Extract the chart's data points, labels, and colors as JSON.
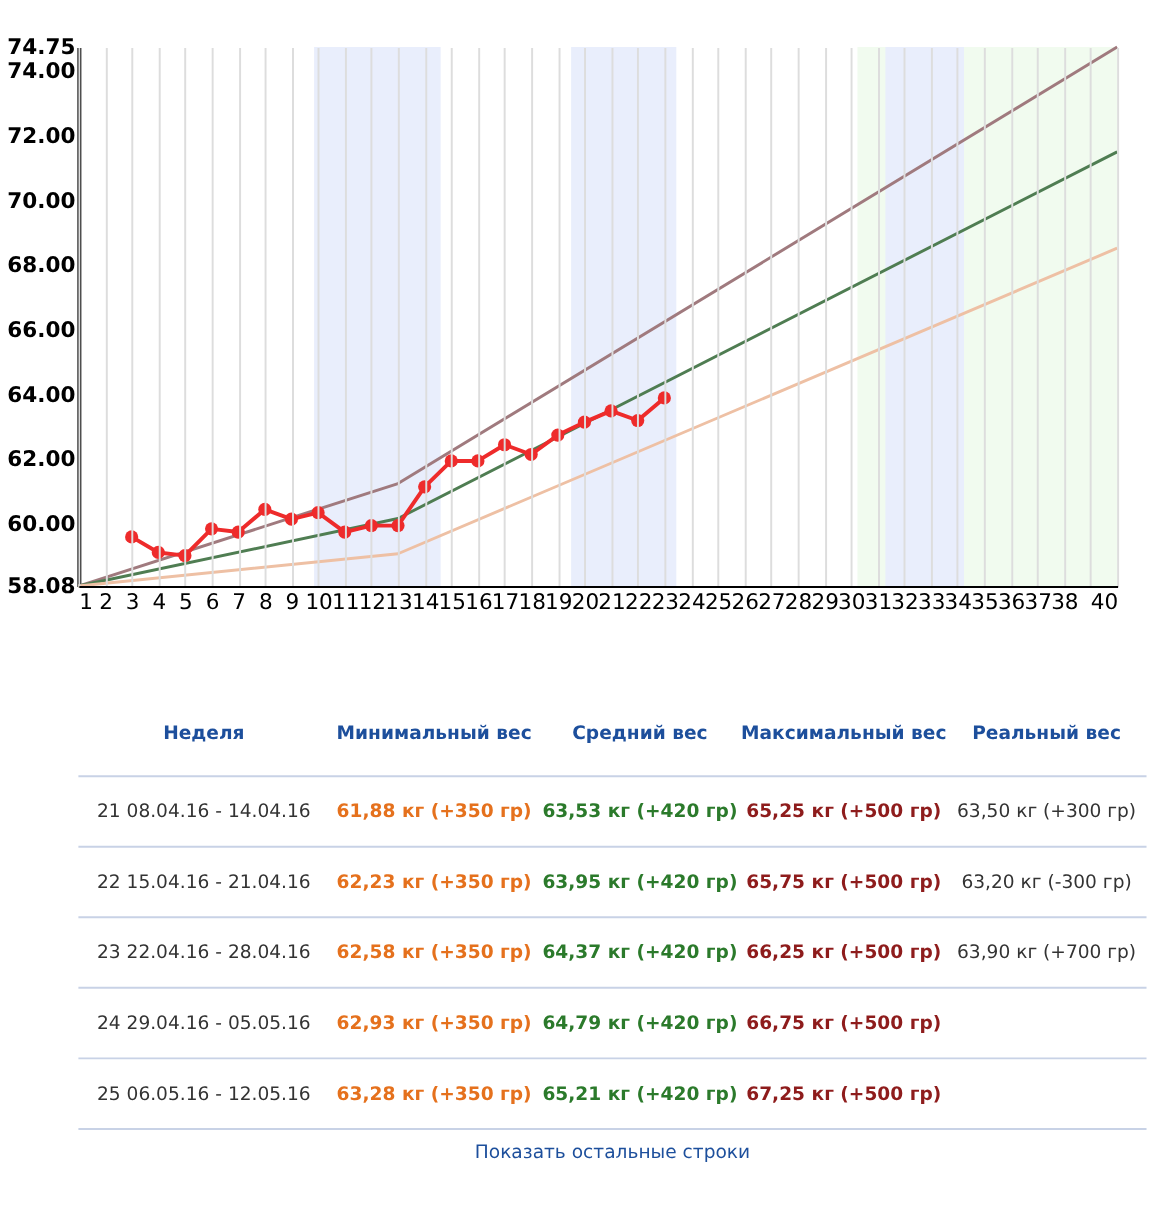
{
  "chart_data": [
    {
      "type": "line",
      "xlim": [
        1,
        40
      ],
      "ylim": [
        58.08,
        74.75
      ],
      "xticks": [
        1,
        2,
        3,
        4,
        5,
        6,
        7,
        8,
        9,
        10,
        11,
        12,
        13,
        14,
        15,
        16,
        17,
        18,
        19,
        20,
        21,
        22,
        23,
        24,
        25,
        26,
        27,
        28,
        29,
        30,
        31,
        32,
        33,
        34,
        35,
        36,
        37,
        38,
        {
          "value": 39,
          "label": null
        },
        40
      ],
      "yticks": [
        58.08,
        {
          "value": 60,
          "label": "60.00"
        },
        {
          "value": 62,
          "label": "62.00"
        },
        {
          "value": 64,
          "label": "64.00"
        },
        {
          "value": 66,
          "label": "66.00"
        },
        {
          "value": 68,
          "label": "68.00"
        },
        {
          "value": 70,
          "label": "70.00"
        },
        {
          "value": 72,
          "label": "72.00"
        },
        {
          "value": 74,
          "label": "74.00"
        },
        74.75
      ],
      "grid": "x",
      "bands": [
        {
          "axis": "x",
          "from": 9.85,
          "to": 14.6,
          "color": "#e9eefc"
        },
        {
          "axis": "x",
          "from": 19.5,
          "to": 23.45,
          "color": "#e9eefc"
        },
        {
          "axis": "x",
          "from": 30.25,
          "to": 40,
          "color": "#f1fbef"
        },
        {
          "axis": "x",
          "from": 31.3,
          "to": 34.25,
          "color": "#e9eefc"
        }
      ],
      "series": [
        {
          "color": "#a07a7e",
          "x": [
            1,
            13,
            40
          ],
          "values": [
            58.08,
            61.25,
            74.75
          ],
          "marker": "none"
        },
        {
          "color": "#4f7d52",
          "x": [
            1,
            13,
            40
          ],
          "values": [
            58.08,
            60.17,
            71.51
          ],
          "marker": "none"
        },
        {
          "color": "#eec0a4",
          "x": [
            1,
            13,
            40
          ],
          "values": [
            58.08,
            59.08,
            68.53
          ],
          "marker": "none"
        },
        {
          "color": "#ee2b2b",
          "x": [
            3,
            4,
            5,
            6,
            7,
            8,
            9,
            10,
            11,
            12,
            13,
            14,
            15,
            16,
            17,
            18,
            19,
            20,
            21,
            22,
            23
          ],
          "values": [
            59.6,
            59.12,
            59.02,
            59.85,
            59.75,
            60.45,
            60.15,
            60.35,
            59.75,
            59.95,
            59.95,
            61.15,
            61.95,
            61.95,
            62.45,
            62.15,
            62.75,
            63.15,
            63.5,
            63.2,
            63.9
          ],
          "marker": "circle"
        }
      ]
    },
    {
      "type": "other",
      "categories": [
        "Неделя",
        "Минимальный вес",
        "Средний вес",
        "Максимальный вес",
        "Реальный вес"
      ],
      "cell_labels": [
        [
          "21 08.04.16 - 14.04.16",
          "61,88 кг (+350 гр)",
          "63,53 кг (+420 гр)",
          "65,25 кг (+500 гр)",
          "63,50 кг (+300 гр)"
        ],
        [
          "22 15.04.16 - 21.04.16",
          "62,23 кг (+350 гр)",
          "63,95 кг (+420 гр)",
          "65,75 кг (+500 гр)",
          "63,20 кг (-300 гр)"
        ],
        [
          "23 22.04.16 - 28.04.16",
          "62,58 кг (+350 гр)",
          "64,37 кг (+420 гр)",
          "66,25 кг (+500 гр)",
          "63,90 кг (+700 гр)"
        ],
        [
          "24 29.04.16 - 05.05.16",
          "62,93 кг (+350 гр)",
          "64,79 кг (+420 гр)",
          "66,75 кг (+500 гр)",
          null
        ],
        [
          "25 06.05.16 - 12.05.16",
          "63,28 кг (+350 гр)",
          "65,21 кг (+420 гр)",
          "67,25 кг (+500 гр)",
          null
        ]
      ],
      "annotations": [
        "Показать остальные строки"
      ]
    }
  ]
}
